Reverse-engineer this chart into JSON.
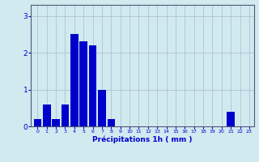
{
  "categories": [
    0,
    1,
    2,
    3,
    4,
    5,
    6,
    7,
    8,
    9,
    10,
    11,
    12,
    13,
    14,
    15,
    16,
    17,
    18,
    19,
    20,
    21,
    22,
    23
  ],
  "values": [
    0.2,
    0.6,
    0.2,
    0.6,
    2.5,
    2.3,
    2.2,
    1.0,
    0.2,
    0.0,
    0.0,
    0.0,
    0.0,
    0.0,
    0.0,
    0.0,
    0.0,
    0.0,
    0.0,
    0.0,
    0.0,
    0.4,
    0.0,
    0.0
  ],
  "bar_color": "#0000cc",
  "background_color": "#d0eaf0",
  "grid_color": "#aabbcc",
  "xlabel": "Précipitations 1h ( mm )",
  "xlabel_color": "#0000cc",
  "tick_color": "#0000cc",
  "axis_color": "#555577",
  "ylim": [
    0,
    3.3
  ],
  "yticks": [
    0,
    1,
    2,
    3
  ],
  "bar_width": 0.85
}
